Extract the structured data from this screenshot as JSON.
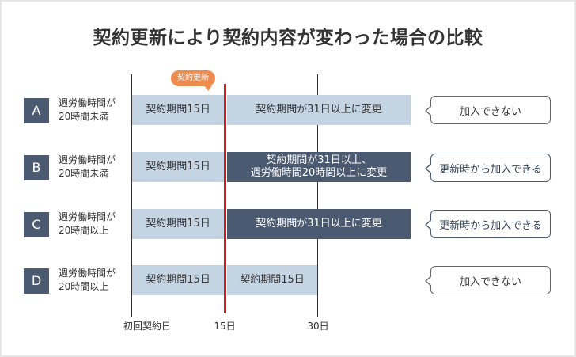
{
  "title": "契約更新により契約内容が変わった場合の比較",
  "callout": "契約更新",
  "axis": {
    "start": "初回契約日",
    "day15": "15日",
    "day30": "30日"
  },
  "rows": [
    {
      "id": "A",
      "label": [
        "週労働時間が",
        "20時間未満"
      ],
      "bar1": "契約期間15日",
      "bar2": [
        "契約期間が31日以上に変更"
      ],
      "result": "加入できない"
    },
    {
      "id": "B",
      "label": [
        "週労働時間が",
        "20時間未満"
      ],
      "bar1": "契約期間15日",
      "bar2": [
        "契約期間が31日以上、",
        "週労働時間20時間以上に変更"
      ],
      "result": "更新時から加入できる"
    },
    {
      "id": "C",
      "label": [
        "週労働時間が",
        "20時間以上"
      ],
      "bar1": "契約期間15日",
      "bar2": [
        "契約期間が31日以上に変更"
      ],
      "result": "更新時から加入できる"
    },
    {
      "id": "D",
      "label": [
        "週労働時間が",
        "20時間以上"
      ],
      "bar1": "契約期間15日",
      "bar2": [
        "契約期間15日"
      ],
      "result": "加入できない"
    }
  ],
  "colors": {
    "dark": "#4b5a70",
    "light": "#c4d4e3",
    "renewal_line": "#e0141e",
    "callout": "#f08b50"
  }
}
